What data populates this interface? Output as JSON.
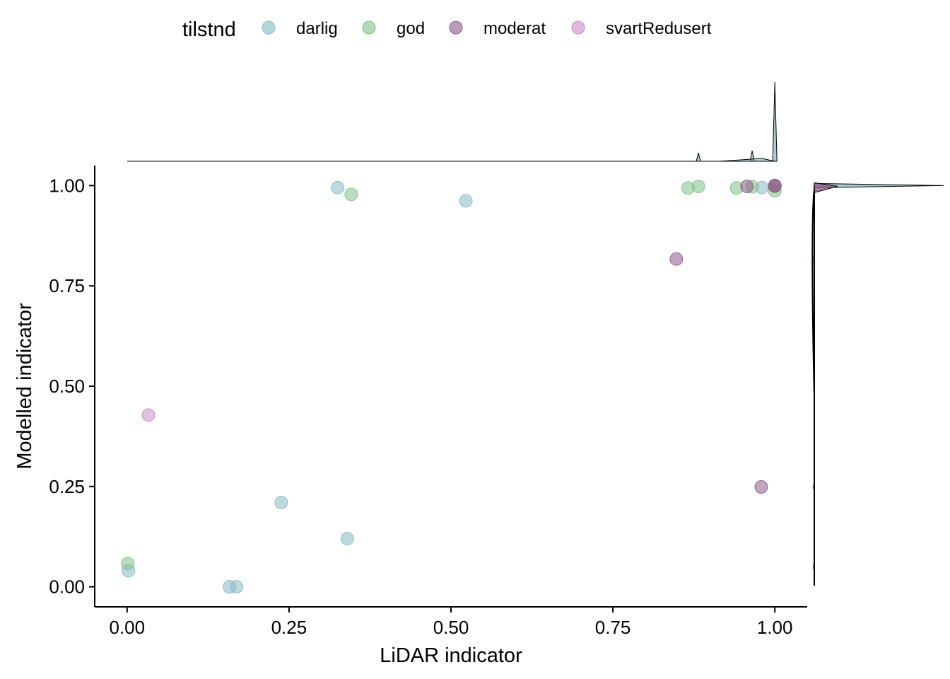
{
  "chart_data": {
    "type": "scatter",
    "xlabel": "LiDAR indicator",
    "ylabel": "Modelled indicator",
    "xlim": [
      -0.05,
      1.05
    ],
    "ylim": [
      -0.05,
      1.05
    ],
    "x_ticks": [
      "0.00",
      "0.25",
      "0.50",
      "0.75",
      "1.00"
    ],
    "y_ticks": [
      "0.00",
      "0.25",
      "0.50",
      "0.75",
      "1.00"
    ],
    "x_tick_values": [
      0,
      0.25,
      0.5,
      0.75,
      1.0
    ],
    "y_tick_values": [
      0,
      0.25,
      0.5,
      0.75,
      1.0
    ],
    "grid": false,
    "legend": {
      "title": "tilstnd",
      "position": "top"
    },
    "marginal_density": "top and right",
    "series": [
      {
        "name": "darlig",
        "color": "#86BAC4",
        "points": [
          {
            "x": 0.325,
            "y": 0.995
          },
          {
            "x": 0.523,
            "y": 0.962
          },
          {
            "x": 0.002,
            "y": 0.04
          },
          {
            "x": 0.238,
            "y": 0.21
          },
          {
            "x": 0.34,
            "y": 0.12
          },
          {
            "x": 0.158,
            "y": 0.0
          },
          {
            "x": 0.169,
            "y": 0.0
          },
          {
            "x": 0.98,
            "y": 0.995
          },
          {
            "x": 1.0,
            "y": 0.998
          }
        ]
      },
      {
        "name": "god",
        "color": "#7FC187",
        "points": [
          {
            "x": 0.346,
            "y": 0.978
          },
          {
            "x": 0.866,
            "y": 0.994
          },
          {
            "x": 0.882,
            "y": 0.998
          },
          {
            "x": 0.941,
            "y": 0.994
          },
          {
            "x": 0.965,
            "y": 0.997
          },
          {
            "x": 1.0,
            "y": 0.987
          },
          {
            "x": 0.001,
            "y": 0.058
          }
        ]
      },
      {
        "name": "moderat",
        "color": "#8E5A87",
        "points": [
          {
            "x": 0.848,
            "y": 0.817
          },
          {
            "x": 0.957,
            "y": 0.998
          },
          {
            "x": 0.979,
            "y": 0.249
          },
          {
            "x": 1.0,
            "y": 1.0
          },
          {
            "x": 1.0,
            "y": 0.999
          }
        ]
      },
      {
        "name": "svartRedusert",
        "color": "#C98CC7",
        "points": [
          {
            "x": 0.033,
            "y": 0.428
          }
        ]
      }
    ]
  }
}
